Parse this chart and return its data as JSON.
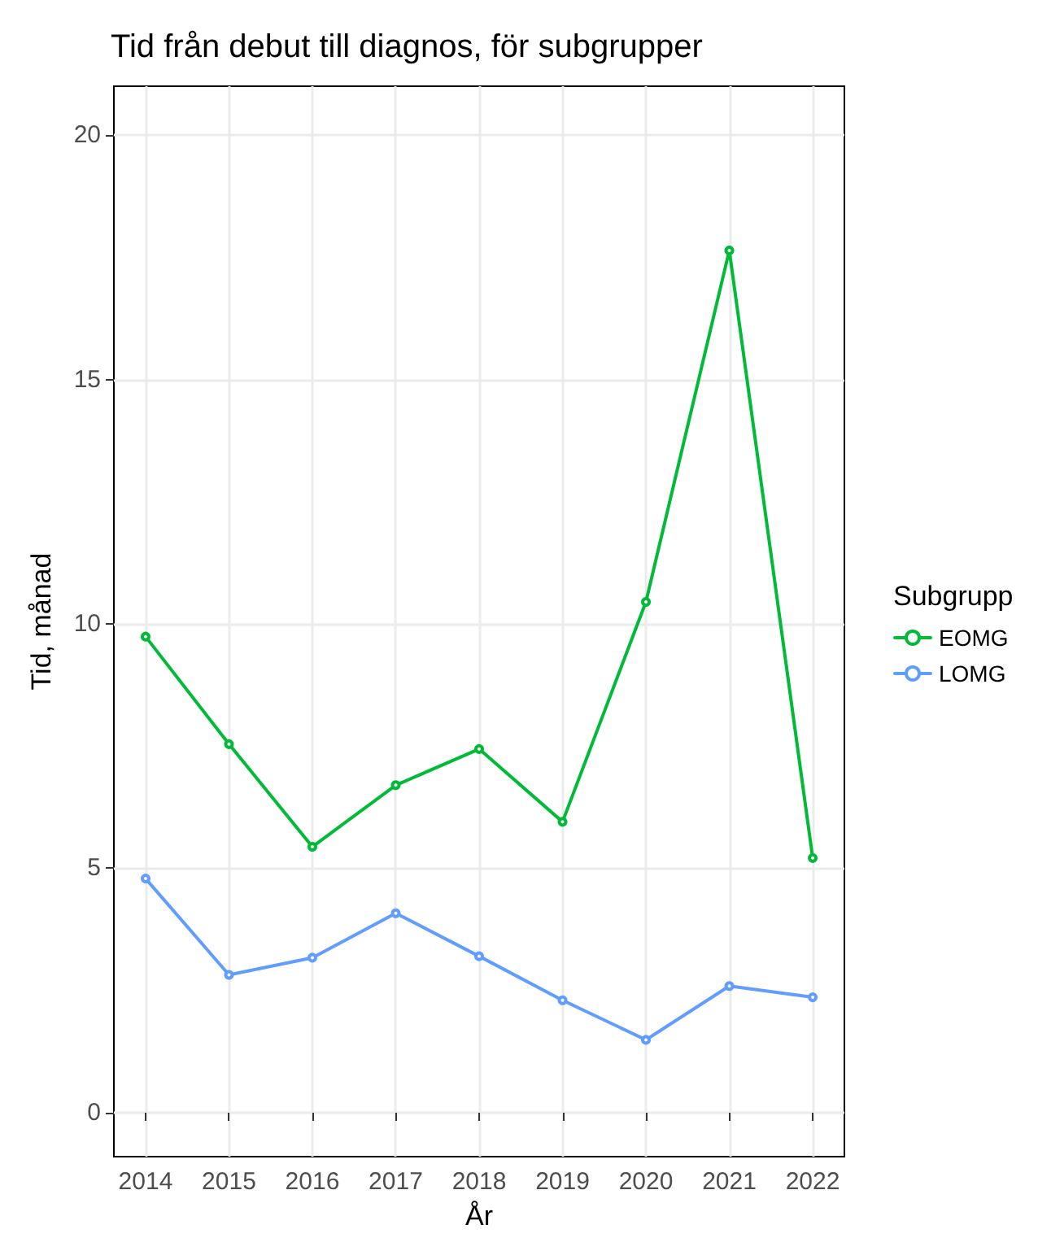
{
  "chart_data": {
    "type": "line",
    "title": "Tid från debut till diagnos, för subgrupper",
    "xlabel": "År",
    "ylabel": "Tid, månad",
    "legend_title": "Subgrupp",
    "x": [
      2014,
      2015,
      2016,
      2017,
      2018,
      2019,
      2020,
      2021,
      2022
    ],
    "series": [
      {
        "name": "EOMG",
        "color": "#00ba38",
        "values": [
          9.74,
          7.54,
          5.44,
          6.7,
          7.44,
          5.95,
          10.45,
          17.64,
          5.21
        ]
      },
      {
        "name": "LOMG",
        "color": "#619cff",
        "values": [
          4.79,
          2.82,
          3.17,
          4.08,
          3.2,
          2.3,
          1.49,
          2.59,
          2.36
        ]
      }
    ],
    "xlim": [
      2013.62,
      2022.38
    ],
    "xticks": [
      2014,
      2015,
      2016,
      2017,
      2018,
      2019,
      2020,
      2021,
      2022
    ],
    "ylim": [
      -0.9,
      21
    ],
    "yticks": [
      0,
      5,
      10,
      15,
      20
    ],
    "grid": true,
    "legend": "right",
    "marker": "circle",
    "line_style": "solid"
  }
}
